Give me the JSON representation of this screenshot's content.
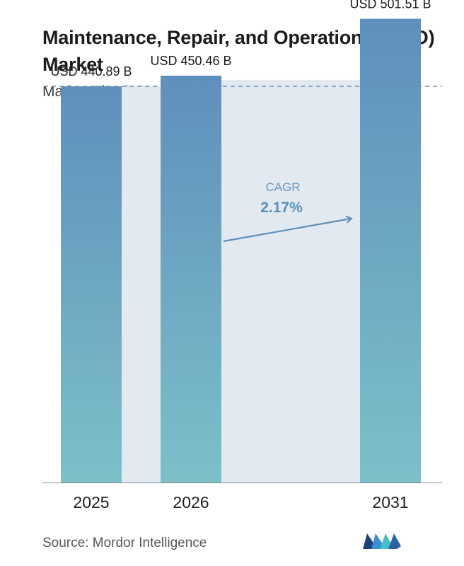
{
  "title": "Maintenance, Repair, and Operations (MRO) Market",
  "subtitle": "Market Size in USD Billion",
  "source": "Source:  Mordor Intelligence",
  "chart_data": {
    "type": "bar",
    "categories": [
      "2025",
      "2026",
      "2031"
    ],
    "values": [
      440.89,
      450.46,
      501.51
    ],
    "data_labels": [
      "USD 440.89 B",
      "USD 450.46 B",
      "USD 501.51 B"
    ],
    "title": "Maintenance, Repair, and Operations (MRO) Market",
    "subtitle": "Market Size in USD Billion",
    "annotation": {
      "label": "CAGR",
      "value": "2.17%"
    },
    "grid": false,
    "legend": "none"
  },
  "colors": {
    "bar_top": "#5f8fbc",
    "bar_bottom": "#7cc0c8",
    "band": "#e2e9f1",
    "arrow": "#5e90bb",
    "dashed_line": "#6a8fb3"
  },
  "logo_icon": "mordor-intelligence-logo-icon"
}
